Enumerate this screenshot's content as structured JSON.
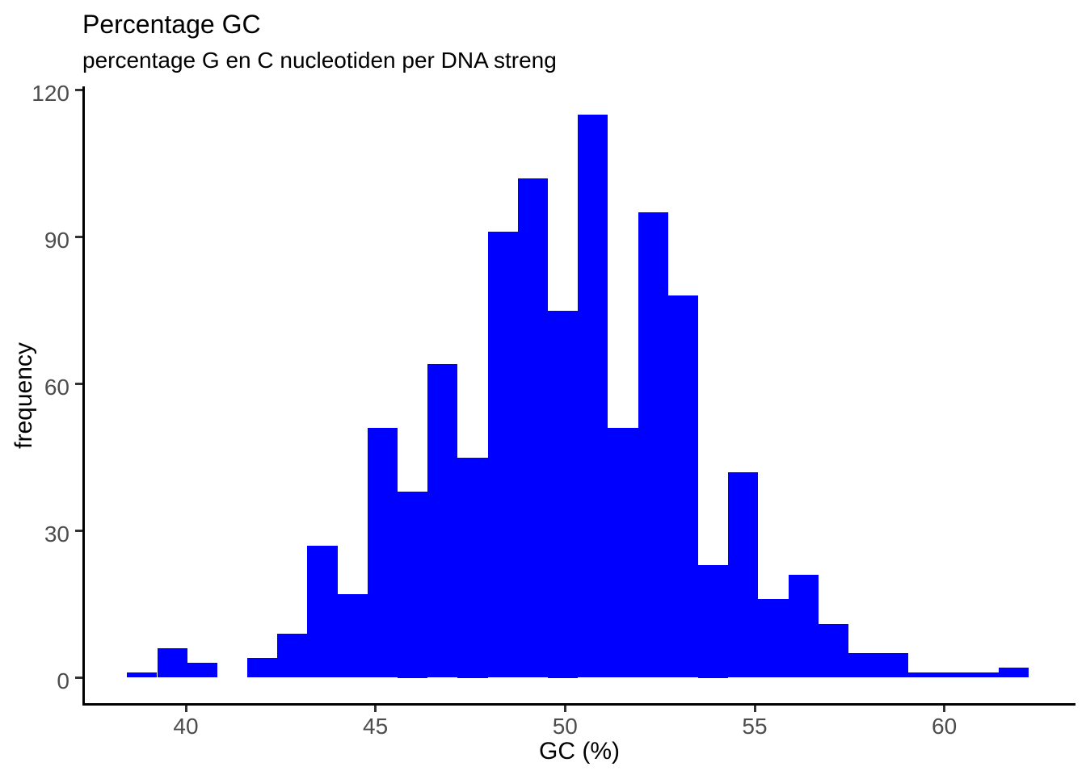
{
  "chart": {
    "title": "Percentage GC",
    "subtitle": "percentage G en C nucleotiden per DNA streng",
    "xlabel": "GC (%)",
    "ylabel": "frequency",
    "colors": {
      "bar_fill": "#0000ff",
      "axis_text": "#4d4d4d",
      "axis_line": "#000000",
      "tick_mark": "#333333",
      "title_text": "#000000",
      "background": "#ffffff"
    }
  },
  "chart_data": {
    "type": "bar",
    "subtype": "histogram",
    "title": "Percentage GC",
    "subtitle": "percentage G en C nucleotiden per DNA streng",
    "xlabel": "GC (%)",
    "ylabel": "frequency",
    "x_ticks": [
      40,
      45,
      50,
      55,
      60
    ],
    "y_ticks": [
      0,
      30,
      60,
      90,
      120
    ],
    "xlim": [
      37.3,
      63.4
    ],
    "ylim": [
      -5.75,
      120.75
    ],
    "grid": false,
    "legend_position": "none",
    "histogram": {
      "bin_start": 38.45,
      "bin_width": 0.7926,
      "n_bins": 30,
      "total_count": 1000,
      "counts": [
        1,
        6,
        3,
        0,
        4,
        9,
        27,
        17,
        51,
        38,
        64,
        45,
        91,
        102,
        75,
        115,
        51,
        95,
        78,
        23,
        42,
        16,
        21,
        11,
        5,
        5,
        1,
        1,
        1,
        2
      ]
    }
  }
}
